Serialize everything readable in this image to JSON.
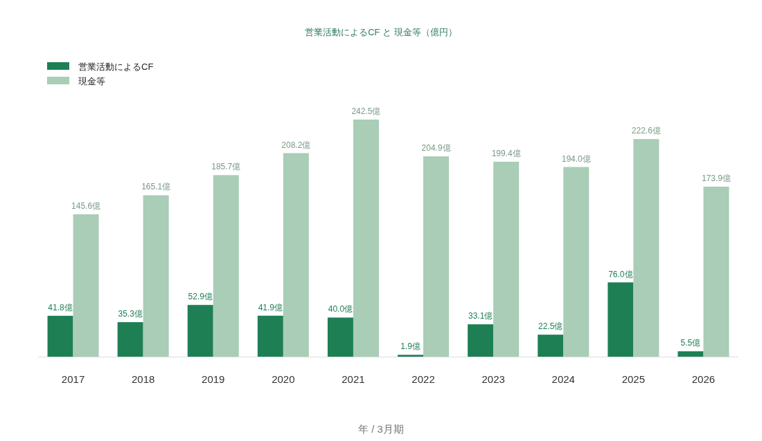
{
  "chart_data": {
    "type": "bar",
    "title": "営業活動によるCF と 現金等（億円）",
    "xlabel": "年 / 3月期",
    "categories": [
      "2017",
      "2018",
      "2019",
      "2020",
      "2021",
      "2022",
      "2023",
      "2024",
      "2025",
      "2026"
    ],
    "legend": "top left",
    "grid": false,
    "series": [
      {
        "name": "営業活動によるCF",
        "color": "#1e7f55",
        "values": [
          41.8,
          35.3,
          52.9,
          41.9,
          40.0,
          1.9,
          33.1,
          22.5,
          76.0,
          5.5
        ],
        "value_labels": [
          "41.8億",
          "35.3億",
          "52.9億",
          "41.9億",
          "40.0億",
          "1.9億",
          "33.1億",
          "22.5億",
          "76.0億",
          "5.5億"
        ]
      },
      {
        "name": "現金等",
        "color": "#a9cdb6",
        "values": [
          145.6,
          165.1,
          185.7,
          208.2,
          242.5,
          204.9,
          199.4,
          194.0,
          222.6,
          173.9
        ],
        "value_labels": [
          "145.6億",
          "165.1億",
          "185.7億",
          "208.2億",
          "242.5億",
          "204.9億",
          "199.4億",
          "194.0億",
          "222.6億",
          "173.9億"
        ]
      }
    ]
  }
}
